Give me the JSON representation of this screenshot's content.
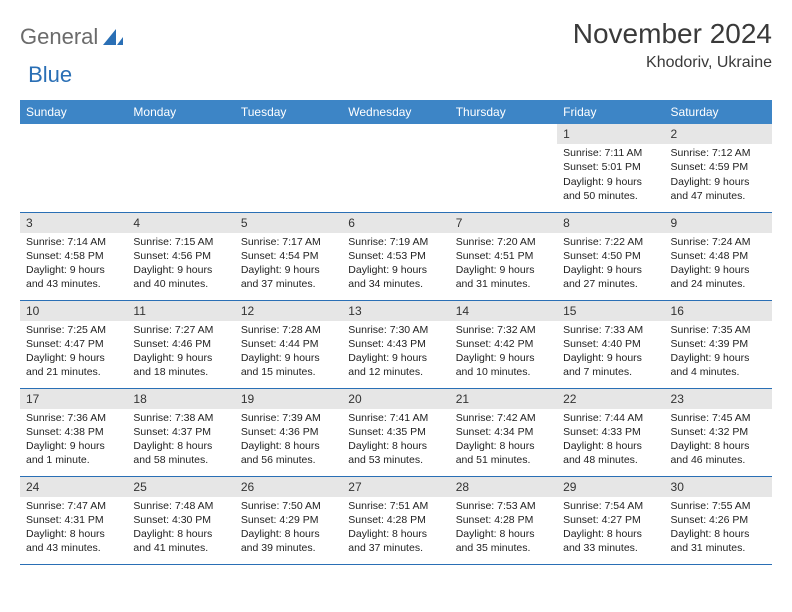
{
  "brand": {
    "name1": "General",
    "name2": "Blue"
  },
  "title": "November 2024",
  "location": "Khodoriv, Ukraine",
  "colors": {
    "header_bg": "#3d85c6",
    "header_text": "#ffffff",
    "rule": "#2a6fb5",
    "daybar_bg": "#e6e6e6",
    "text": "#222222",
    "brand_gray": "#6b6b6b",
    "brand_blue": "#2a6fb5"
  },
  "day_headers": [
    "Sunday",
    "Monday",
    "Tuesday",
    "Wednesday",
    "Thursday",
    "Friday",
    "Saturday"
  ],
  "weeks": [
    [
      {
        "day": "",
        "sunrise": "",
        "sunset": "",
        "daylight": ""
      },
      {
        "day": "",
        "sunrise": "",
        "sunset": "",
        "daylight": ""
      },
      {
        "day": "",
        "sunrise": "",
        "sunset": "",
        "daylight": ""
      },
      {
        "day": "",
        "sunrise": "",
        "sunset": "",
        "daylight": ""
      },
      {
        "day": "",
        "sunrise": "",
        "sunset": "",
        "daylight": ""
      },
      {
        "day": "1",
        "sunrise": "Sunrise: 7:11 AM",
        "sunset": "Sunset: 5:01 PM",
        "daylight": "Daylight: 9 hours and 50 minutes."
      },
      {
        "day": "2",
        "sunrise": "Sunrise: 7:12 AM",
        "sunset": "Sunset: 4:59 PM",
        "daylight": "Daylight: 9 hours and 47 minutes."
      }
    ],
    [
      {
        "day": "3",
        "sunrise": "Sunrise: 7:14 AM",
        "sunset": "Sunset: 4:58 PM",
        "daylight": "Daylight: 9 hours and 43 minutes."
      },
      {
        "day": "4",
        "sunrise": "Sunrise: 7:15 AM",
        "sunset": "Sunset: 4:56 PM",
        "daylight": "Daylight: 9 hours and 40 minutes."
      },
      {
        "day": "5",
        "sunrise": "Sunrise: 7:17 AM",
        "sunset": "Sunset: 4:54 PM",
        "daylight": "Daylight: 9 hours and 37 minutes."
      },
      {
        "day": "6",
        "sunrise": "Sunrise: 7:19 AM",
        "sunset": "Sunset: 4:53 PM",
        "daylight": "Daylight: 9 hours and 34 minutes."
      },
      {
        "day": "7",
        "sunrise": "Sunrise: 7:20 AM",
        "sunset": "Sunset: 4:51 PM",
        "daylight": "Daylight: 9 hours and 31 minutes."
      },
      {
        "day": "8",
        "sunrise": "Sunrise: 7:22 AM",
        "sunset": "Sunset: 4:50 PM",
        "daylight": "Daylight: 9 hours and 27 minutes."
      },
      {
        "day": "9",
        "sunrise": "Sunrise: 7:24 AM",
        "sunset": "Sunset: 4:48 PM",
        "daylight": "Daylight: 9 hours and 24 minutes."
      }
    ],
    [
      {
        "day": "10",
        "sunrise": "Sunrise: 7:25 AM",
        "sunset": "Sunset: 4:47 PM",
        "daylight": "Daylight: 9 hours and 21 minutes."
      },
      {
        "day": "11",
        "sunrise": "Sunrise: 7:27 AM",
        "sunset": "Sunset: 4:46 PM",
        "daylight": "Daylight: 9 hours and 18 minutes."
      },
      {
        "day": "12",
        "sunrise": "Sunrise: 7:28 AM",
        "sunset": "Sunset: 4:44 PM",
        "daylight": "Daylight: 9 hours and 15 minutes."
      },
      {
        "day": "13",
        "sunrise": "Sunrise: 7:30 AM",
        "sunset": "Sunset: 4:43 PM",
        "daylight": "Daylight: 9 hours and 12 minutes."
      },
      {
        "day": "14",
        "sunrise": "Sunrise: 7:32 AM",
        "sunset": "Sunset: 4:42 PM",
        "daylight": "Daylight: 9 hours and 10 minutes."
      },
      {
        "day": "15",
        "sunrise": "Sunrise: 7:33 AM",
        "sunset": "Sunset: 4:40 PM",
        "daylight": "Daylight: 9 hours and 7 minutes."
      },
      {
        "day": "16",
        "sunrise": "Sunrise: 7:35 AM",
        "sunset": "Sunset: 4:39 PM",
        "daylight": "Daylight: 9 hours and 4 minutes."
      }
    ],
    [
      {
        "day": "17",
        "sunrise": "Sunrise: 7:36 AM",
        "sunset": "Sunset: 4:38 PM",
        "daylight": "Daylight: 9 hours and 1 minute."
      },
      {
        "day": "18",
        "sunrise": "Sunrise: 7:38 AM",
        "sunset": "Sunset: 4:37 PM",
        "daylight": "Daylight: 8 hours and 58 minutes."
      },
      {
        "day": "19",
        "sunrise": "Sunrise: 7:39 AM",
        "sunset": "Sunset: 4:36 PM",
        "daylight": "Daylight: 8 hours and 56 minutes."
      },
      {
        "day": "20",
        "sunrise": "Sunrise: 7:41 AM",
        "sunset": "Sunset: 4:35 PM",
        "daylight": "Daylight: 8 hours and 53 minutes."
      },
      {
        "day": "21",
        "sunrise": "Sunrise: 7:42 AM",
        "sunset": "Sunset: 4:34 PM",
        "daylight": "Daylight: 8 hours and 51 minutes."
      },
      {
        "day": "22",
        "sunrise": "Sunrise: 7:44 AM",
        "sunset": "Sunset: 4:33 PM",
        "daylight": "Daylight: 8 hours and 48 minutes."
      },
      {
        "day": "23",
        "sunrise": "Sunrise: 7:45 AM",
        "sunset": "Sunset: 4:32 PM",
        "daylight": "Daylight: 8 hours and 46 minutes."
      }
    ],
    [
      {
        "day": "24",
        "sunrise": "Sunrise: 7:47 AM",
        "sunset": "Sunset: 4:31 PM",
        "daylight": "Daylight: 8 hours and 43 minutes."
      },
      {
        "day": "25",
        "sunrise": "Sunrise: 7:48 AM",
        "sunset": "Sunset: 4:30 PM",
        "daylight": "Daylight: 8 hours and 41 minutes."
      },
      {
        "day": "26",
        "sunrise": "Sunrise: 7:50 AM",
        "sunset": "Sunset: 4:29 PM",
        "daylight": "Daylight: 8 hours and 39 minutes."
      },
      {
        "day": "27",
        "sunrise": "Sunrise: 7:51 AM",
        "sunset": "Sunset: 4:28 PM",
        "daylight": "Daylight: 8 hours and 37 minutes."
      },
      {
        "day": "28",
        "sunrise": "Sunrise: 7:53 AM",
        "sunset": "Sunset: 4:28 PM",
        "daylight": "Daylight: 8 hours and 35 minutes."
      },
      {
        "day": "29",
        "sunrise": "Sunrise: 7:54 AM",
        "sunset": "Sunset: 4:27 PM",
        "daylight": "Daylight: 8 hours and 33 minutes."
      },
      {
        "day": "30",
        "sunrise": "Sunrise: 7:55 AM",
        "sunset": "Sunset: 4:26 PM",
        "daylight": "Daylight: 8 hours and 31 minutes."
      }
    ]
  ]
}
